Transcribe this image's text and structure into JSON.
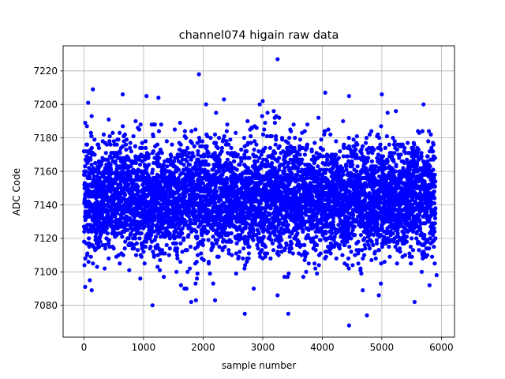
{
  "chart_data": {
    "type": "scatter",
    "title": "channel074 higain raw data",
    "xlabel": "sample number",
    "ylabel": "ADC Code",
    "xlim": [
      -350,
      6220
    ],
    "ylim": [
      7061,
      7235
    ],
    "xticks": [
      0,
      1000,
      2000,
      3000,
      4000,
      5000,
      6000
    ],
    "yticks": [
      7080,
      7100,
      7120,
      7140,
      7160,
      7180,
      7200,
      7220
    ],
    "xtick_labels": [
      "0",
      "1000",
      "2000",
      "3000",
      "4000",
      "5000",
      "6000"
    ],
    "ytick_labels": [
      "7080",
      "7100",
      "7120",
      "7140",
      "7160",
      "7180",
      "7200",
      "7220"
    ],
    "grid": true,
    "marker_color": "#0000ff",
    "n_points": 5900,
    "x_range": [
      0,
      5900
    ],
    "center": 7144,
    "spread_std": 17,
    "notable_points": [
      {
        "x": 3250,
        "y": 7227
      },
      {
        "x": 1930,
        "y": 7218
      },
      {
        "x": 150,
        "y": 7209
      },
      {
        "x": 1050,
        "y": 7205
      },
      {
        "x": 1250,
        "y": 7204
      },
      {
        "x": 4050,
        "y": 7207
      },
      {
        "x": 5000,
        "y": 7206
      },
      {
        "x": 4450,
        "y": 7205
      },
      {
        "x": 3000,
        "y": 7202
      },
      {
        "x": 2950,
        "y": 7200
      },
      {
        "x": 5700,
        "y": 7200
      },
      {
        "x": 2050,
        "y": 7200
      },
      {
        "x": 2350,
        "y": 7203
      },
      {
        "x": 650,
        "y": 7206
      },
      {
        "x": 70,
        "y": 7201
      },
      {
        "x": 1150,
        "y": 7080
      },
      {
        "x": 1800,
        "y": 7082
      },
      {
        "x": 1880,
        "y": 7083
      },
      {
        "x": 2200,
        "y": 7083
      },
      {
        "x": 2700,
        "y": 7075
      },
      {
        "x": 3250,
        "y": 7086
      },
      {
        "x": 3430,
        "y": 7075
      },
      {
        "x": 4450,
        "y": 7068
      },
      {
        "x": 4750,
        "y": 7074
      },
      {
        "x": 4680,
        "y": 7089
      },
      {
        "x": 4950,
        "y": 7086
      },
      {
        "x": 5550,
        "y": 7082
      },
      {
        "x": 130,
        "y": 7089
      },
      {
        "x": 20,
        "y": 7091
      },
      {
        "x": 5920,
        "y": 7098
      },
      {
        "x": 2850,
        "y": 7090
      }
    ]
  }
}
